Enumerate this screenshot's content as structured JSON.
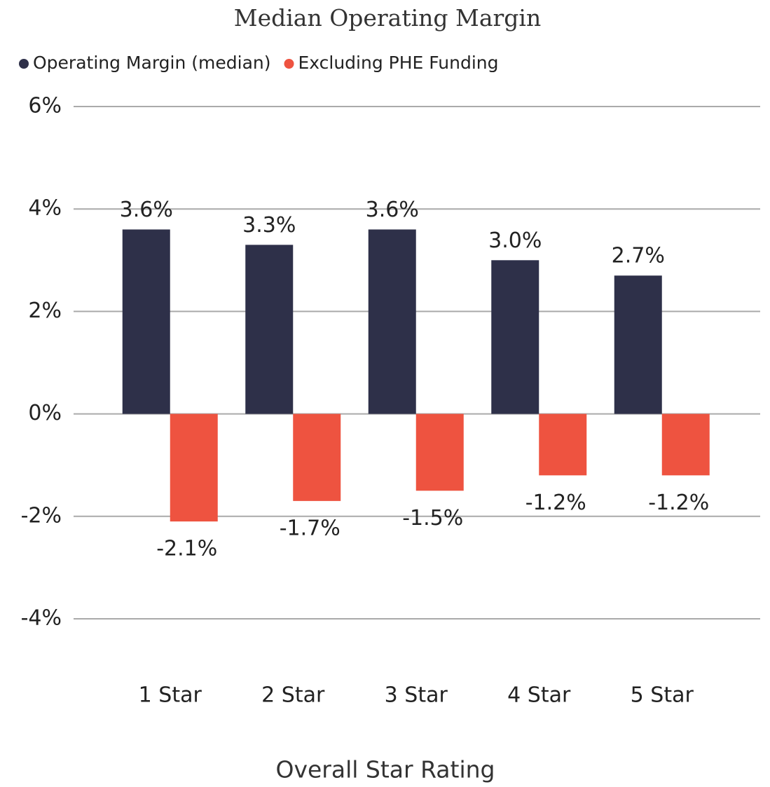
{
  "chart_data": {
    "type": "bar",
    "title": "Median Operating Margin",
    "x_label": "Overall Star Rating",
    "categories": [
      "1 Star",
      "2 Star",
      "3 Star",
      "4 Star",
      "5 Star"
    ],
    "series": [
      {
        "name": "Operating Margin (median)",
        "color": "#2e3049",
        "values": [
          3.6,
          3.3,
          3.6,
          3.0,
          2.7
        ],
        "value_labels": [
          "3.6%",
          "3.3%",
          "3.6%",
          "3.0%",
          "2.7%"
        ]
      },
      {
        "name": "Excluding PHE Funding",
        "color": "#ee5340",
        "values": [
          -2.1,
          -1.7,
          -1.5,
          -1.2,
          -1.2
        ],
        "value_labels": [
          "-2.1%",
          "-1.7%",
          "-1.5%",
          "-1.2%",
          "-1.2%"
        ]
      }
    ],
    "ylim": [
      -4,
      6
    ],
    "yticks": [
      {
        "value": -4,
        "label": "-4%"
      },
      {
        "value": -2,
        "label": "-2%"
      },
      {
        "value": 0,
        "label": "0%"
      },
      {
        "value": 2,
        "label": "2%"
      },
      {
        "value": 4,
        "label": "4%"
      },
      {
        "value": 6,
        "label": "6%"
      }
    ],
    "grid": true,
    "legend": "top-left"
  }
}
